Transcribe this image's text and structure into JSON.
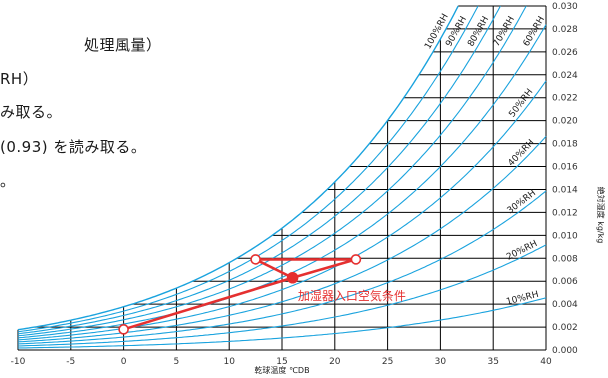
{
  "text_lines": [
    "処理風量）",
    "RH）",
    "み取る。",
    "(0.93) を読み取る。",
    "。"
  ],
  "chart_data": {
    "type": "psychrometric",
    "xlabel": "乾球温度 ℃DB",
    "ylabel": "絶対湿度 kg/kg",
    "xlim": [
      -10,
      40
    ],
    "ylim": [
      0,
      0.03
    ],
    "x_ticks": [
      "-10",
      "-5",
      "0",
      "5",
      "10",
      "15",
      "20",
      "25",
      "30",
      "35",
      "40"
    ],
    "y_ticks": [
      "0.000",
      "0.002",
      "0.004",
      "0.006",
      "0.008",
      "0.010",
      "0.012",
      "0.014",
      "0.016",
      "0.018",
      "0.020",
      "0.022",
      "0.024",
      "0.026",
      "0.028",
      "0.030"
    ],
    "rh_curves": [
      {
        "rh": 10,
        "label": "10%RH"
      },
      {
        "rh": 20,
        "label": "20%RH"
      },
      {
        "rh": 30,
        "label": "30%RH"
      },
      {
        "rh": 40,
        "label": "40%RH"
      },
      {
        "rh": 50,
        "label": "50%RH"
      },
      {
        "rh": 60,
        "label": "60%RH"
      },
      {
        "rh": 70,
        "label": "70%RH"
      },
      {
        "rh": 80,
        "label": "80%RH"
      },
      {
        "rh": 90,
        "label": "90%RH"
      },
      {
        "rh": 100,
        "label": "100%RH"
      }
    ],
    "process_points": [
      {
        "x": 0,
        "y": 0.0018,
        "style": "open"
      },
      {
        "x": 16,
        "y": 0.0063,
        "style": "filled"
      },
      {
        "x": 12.5,
        "y": 0.0079,
        "style": "open"
      },
      {
        "x": 22,
        "y": 0.0079,
        "style": "open"
      }
    ],
    "process_lines": [
      [
        0,
        1
      ],
      [
        1,
        3
      ],
      [
        2,
        3
      ],
      [
        2,
        1
      ]
    ],
    "annotation": {
      "text": "加湿器入口空気条件",
      "x": 16.5,
      "y": 0.0047
    },
    "colors": {
      "grid": "#000000",
      "rh_curve": "#1aa3de",
      "process": "#e53030",
      "text": "#333333"
    }
  }
}
